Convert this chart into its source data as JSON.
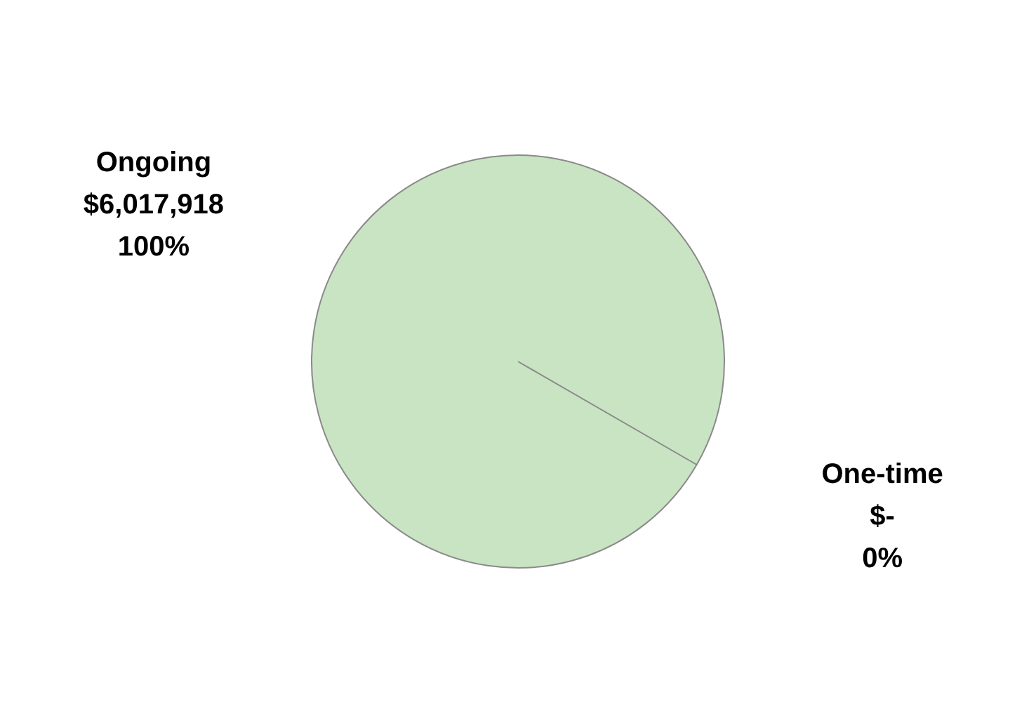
{
  "chart_data": {
    "type": "pie",
    "categories": [
      "Ongoing",
      "One-time"
    ],
    "values": [
      6017918,
      0
    ],
    "colors": [
      "#c9e4c3",
      "#4a607a"
    ],
    "value_labels": [
      "$6,017,918\n100%",
      "$-\n0%"
    ],
    "legend": false
  }
}
